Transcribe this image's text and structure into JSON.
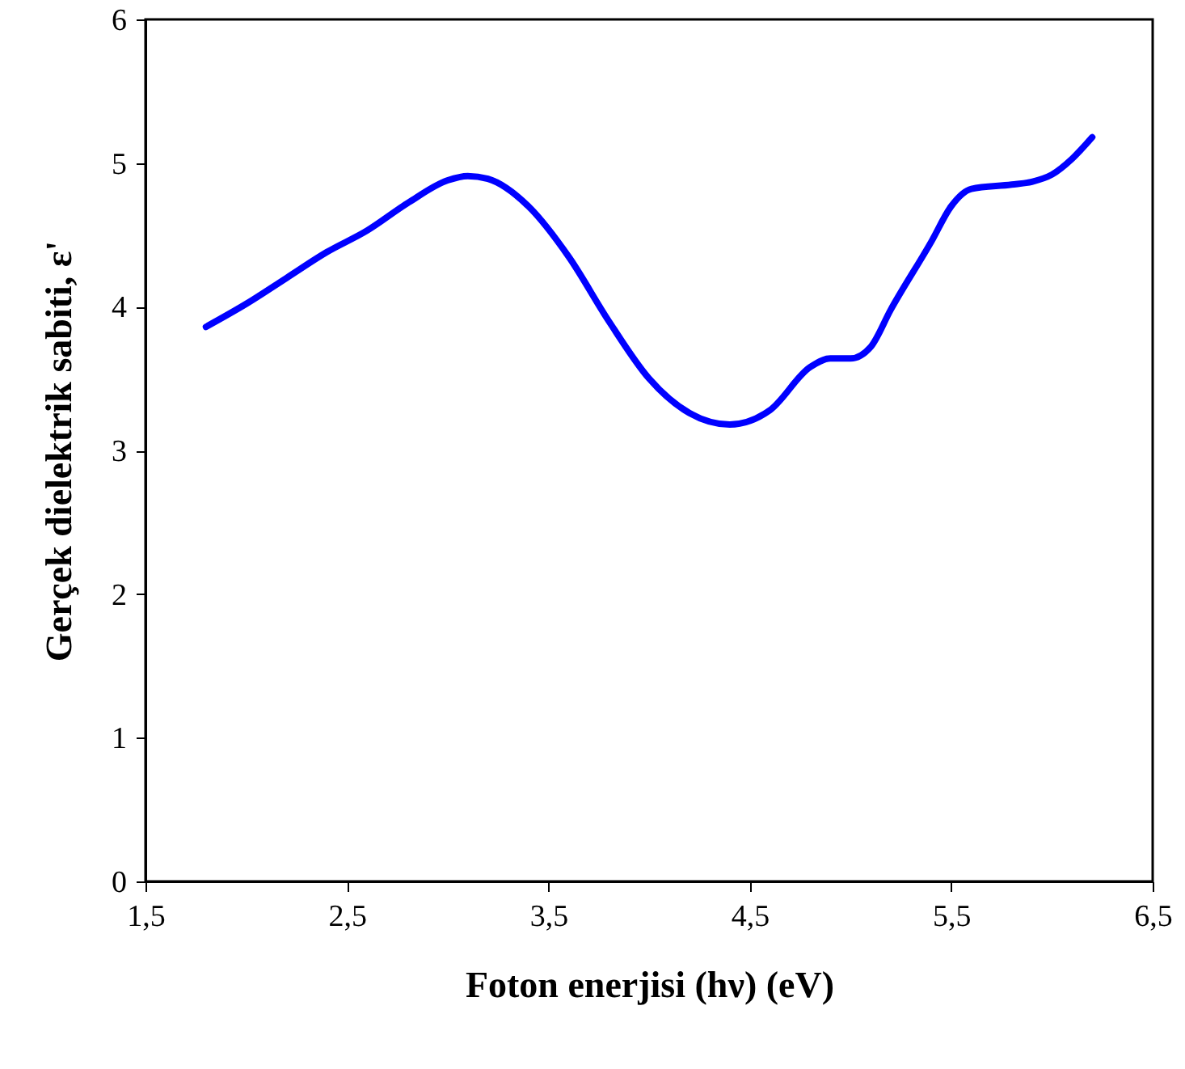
{
  "chart_data": {
    "type": "line",
    "xlabel": "Foton enerjisi (hν) (eV)",
    "ylabel": "Gerçek dielektrik sabiti, ε'",
    "x": [
      1.8,
      2.0,
      2.2,
      2.4,
      2.6,
      2.8,
      3.0,
      3.1,
      3.2,
      3.4,
      3.6,
      3.8,
      4.0,
      4.2,
      4.4,
      4.6,
      4.8,
      4.9,
      5.0,
      5.1,
      5.2,
      5.4,
      5.5,
      5.6,
      5.8,
      5.9,
      6.0,
      6.1,
      6.2
    ],
    "series": [
      {
        "color": "#0000ff",
        "values": [
          3.86,
          4.02,
          4.2,
          4.38,
          4.53,
          4.72,
          4.88,
          4.91,
          4.89,
          4.7,
          4.35,
          3.9,
          3.5,
          3.26,
          3.18,
          3.28,
          3.58,
          3.64,
          3.64,
          3.72,
          3.98,
          4.45,
          4.7,
          4.82,
          4.85,
          4.87,
          4.92,
          5.03,
          5.18
        ]
      }
    ],
    "xlim": [
      1.5,
      6.5
    ],
    "xticks": [
      {
        "value": 1.5,
        "label": "1,5"
      },
      {
        "value": 2.5,
        "label": "2,5"
      },
      {
        "value": 3.5,
        "label": "3,5"
      },
      {
        "value": 4.5,
        "label": "4,5"
      },
      {
        "value": 5.5,
        "label": "5,5"
      },
      {
        "value": 6.5,
        "label": "6,5"
      }
    ],
    "ylim": [
      0,
      6
    ],
    "yticks": [
      0,
      1,
      2,
      3,
      4,
      5,
      6
    ],
    "grid": false,
    "marker": "none",
    "line_style": "solid"
  }
}
